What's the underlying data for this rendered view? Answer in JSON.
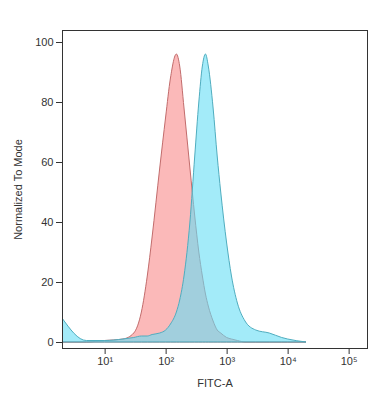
{
  "chart_data": {
    "type": "area",
    "xlabel": "FITC-A",
    "ylabel": "Normalized To Mode",
    "log": "x",
    "x": [
      2,
      5,
      10,
      20,
      30,
      40,
      50,
      60,
      80,
      100,
      120,
      150,
      170,
      200,
      250,
      300,
      350,
      400,
      450,
      500,
      600,
      700,
      800,
      1000,
      1200,
      1500,
      2000,
      3000,
      5000,
      8000,
      10000,
      20000
    ],
    "series": [
      {
        "color": "#f98a8a",
        "values": [
          0,
          0,
          0.5,
          1,
          3,
          10,
          22,
          35,
          58,
          75,
          88,
          96,
          92,
          78,
          58,
          42,
          30,
          22,
          16,
          12,
          7,
          4,
          3,
          1.5,
          1,
          0.5,
          0,
          0,
          0,
          0,
          0,
          0
        ]
      },
      {
        "color": "#66def5",
        "values": [
          8,
          0.5,
          0.5,
          1,
          1.5,
          2,
          2,
          2.5,
          3,
          4,
          6,
          10,
          14,
          22,
          40,
          62,
          80,
          92,
          96,
          92,
          78,
          62,
          50,
          33,
          22,
          13,
          7,
          4,
          3,
          1.5,
          1,
          0
        ]
      }
    ],
    "xlim": [
      2,
      200000
    ],
    "xticks": [
      {
        "value": 10,
        "label": "10¹"
      },
      {
        "value": 100,
        "label": "10²"
      },
      {
        "value": 1000,
        "label": "10³"
      },
      {
        "value": 10000,
        "label": "10⁴"
      },
      {
        "value": 100000,
        "label": "10⁵"
      }
    ],
    "ylim": [
      -2,
      104
    ],
    "yticks": [
      0,
      20,
      40,
      60,
      80,
      100
    ],
    "grid": false
  }
}
